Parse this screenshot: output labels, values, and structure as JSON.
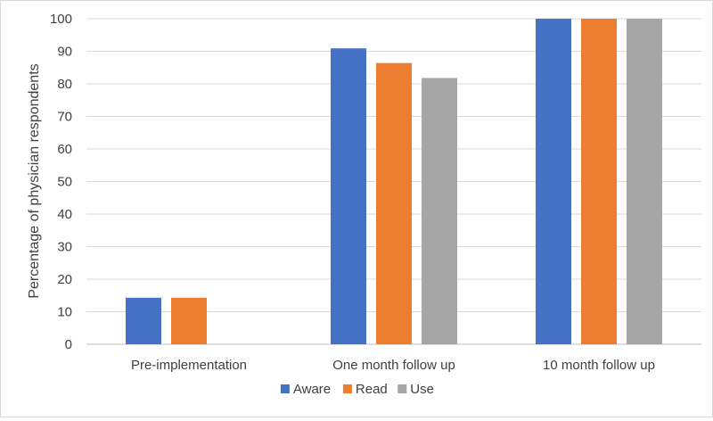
{
  "chart_data": {
    "type": "bar",
    "title": "",
    "xlabel": "",
    "ylabel": "Percentage of physician respondents",
    "ylim": [
      0,
      100
    ],
    "yticks": [
      0,
      10,
      20,
      30,
      40,
      50,
      60,
      70,
      80,
      90,
      100
    ],
    "grid": true,
    "legend_position": "bottom",
    "categories": [
      "Pre-implementation",
      "One month follow up",
      "10 month follow up"
    ],
    "series": [
      {
        "name": "Aware",
        "color": "#4472c4",
        "values": [
          14.3,
          90.9,
          100
        ]
      },
      {
        "name": "Read",
        "color": "#ed7d31",
        "values": [
          14.3,
          86.4,
          100
        ]
      },
      {
        "name": "Use",
        "color": "#a5a5a5",
        "values": [
          0,
          81.8,
          100
        ]
      }
    ]
  }
}
